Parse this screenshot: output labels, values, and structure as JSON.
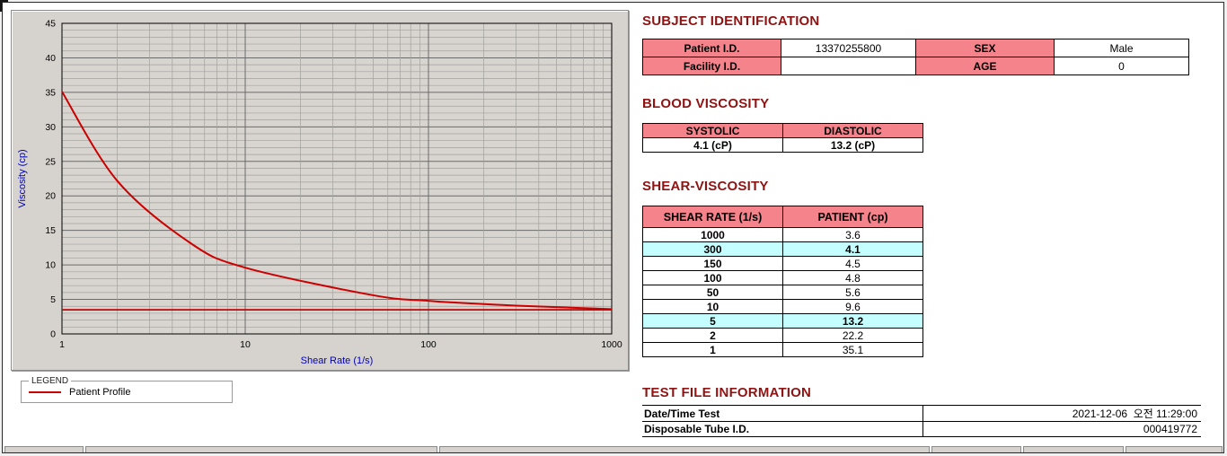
{
  "sections": {
    "subject": {
      "title": "SUBJECT IDENTIFICATION",
      "rows": [
        {
          "label1": "Patient I.D.",
          "value1": "13370255800",
          "label2": "SEX",
          "value2": "Male"
        },
        {
          "label1": "Facility I.D.",
          "value1": "",
          "label2": "AGE",
          "value2": "0"
        }
      ]
    },
    "blood_viscosity": {
      "title": "BLOOD VISCOSITY",
      "headers": [
        "SYSTOLIC",
        "DIASTOLIC"
      ],
      "values": [
        "4.1 (cP)",
        "13.2 (cP)"
      ]
    },
    "shear_viscosity": {
      "title": "SHEAR-VISCOSITY",
      "headers": [
        "SHEAR RATE (1/s)",
        "PATIENT (cp)"
      ],
      "rows": [
        {
          "rate": "1000",
          "value": "3.6",
          "highlight": false
        },
        {
          "rate": "300",
          "value": "4.1",
          "highlight": true
        },
        {
          "rate": "150",
          "value": "4.5",
          "highlight": false
        },
        {
          "rate": "100",
          "value": "4.8",
          "highlight": false
        },
        {
          "rate": "50",
          "value": "5.6",
          "highlight": false
        },
        {
          "rate": "10",
          "value": "9.6",
          "highlight": false
        },
        {
          "rate": "5",
          "value": "13.2",
          "highlight": true
        },
        {
          "rate": "2",
          "value": "22.2",
          "highlight": false
        },
        {
          "rate": "1",
          "value": "35.1",
          "highlight": false
        }
      ]
    },
    "test_file": {
      "title": "TEST FILE INFORMATION",
      "rows": [
        {
          "label": "Date/Time Test",
          "value": "2021-12-06  오전 11:29:00"
        },
        {
          "label": "Disposable Tube I.D.",
          "value": "000419772"
        }
      ]
    }
  },
  "chart_data": {
    "type": "line",
    "x_scale": "log",
    "title": "",
    "xlabel": "Shear Rate (1/s)",
    "ylabel": "Viscosity (cp)",
    "xlim": [
      1,
      1000
    ],
    "ylim": [
      0,
      45
    ],
    "x_ticks": [
      1,
      10,
      100,
      1000
    ],
    "y_ticks": [
      0,
      5,
      10,
      15,
      20,
      25,
      30,
      35,
      40,
      45
    ],
    "grid": true,
    "x": [
      1,
      2,
      5,
      10,
      50,
      100,
      150,
      300,
      1000
    ],
    "series": [
      {
        "name": "Patient Profile",
        "color": "#cc0000",
        "values": [
          35.1,
          22.2,
          13.2,
          9.6,
          5.6,
          4.8,
          4.5,
          4.1,
          3.6
        ]
      }
    ],
    "reference_line": {
      "y": 3.5,
      "color": "#cc0000"
    },
    "legend": {
      "title": "LEGEND",
      "entries": [
        {
          "label": "Patient Profile",
          "color": "#cc0000"
        }
      ]
    }
  },
  "colors": {
    "section_title": "#8e1414",
    "table_header_bg": "#f4838b",
    "highlight_bg": "#c4feff",
    "curve": "#cc0000",
    "axis_label": "#0000bb",
    "panel_bg": "#d6d3ce"
  }
}
